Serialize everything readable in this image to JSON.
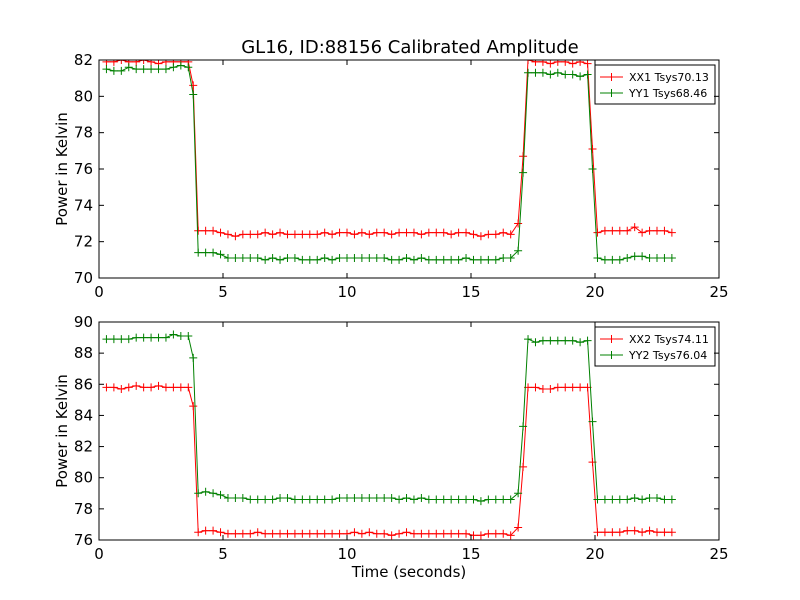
{
  "title": "GL16, ID:88156 Calibrated Amplitude",
  "colors": {
    "red": "#ff0000",
    "green": "#008000"
  },
  "chart_data": [
    {
      "type": "line",
      "xlabel": "",
      "ylabel": "Power in Kelvin",
      "xlim": [
        0,
        25
      ],
      "ylim": [
        70,
        82
      ],
      "xticks": [
        0,
        5,
        10,
        15,
        20,
        25
      ],
      "yticks": [
        70,
        72,
        74,
        76,
        78,
        80,
        82
      ],
      "grid": false,
      "legend": "top-right",
      "x": [
        0.3,
        0.6,
        0.9,
        1.2,
        1.5,
        1.8,
        2.1,
        2.4,
        2.7,
        3.0,
        3.3,
        3.6,
        3.8,
        4.0,
        4.3,
        4.6,
        4.9,
        5.2,
        5.5,
        5.8,
        6.1,
        6.4,
        6.7,
        7.0,
        7.3,
        7.6,
        7.9,
        8.2,
        8.5,
        8.8,
        9.1,
        9.4,
        9.7,
        10.0,
        10.3,
        10.6,
        10.9,
        11.2,
        11.5,
        11.8,
        12.1,
        12.4,
        12.7,
        13.0,
        13.3,
        13.6,
        13.9,
        14.2,
        14.5,
        14.8,
        15.1,
        15.4,
        15.7,
        16.0,
        16.3,
        16.6,
        16.9,
        17.1,
        17.3,
        17.6,
        17.9,
        18.2,
        18.5,
        18.8,
        19.1,
        19.4,
        19.7,
        19.9,
        20.1,
        20.4,
        20.7,
        21.0,
        21.3,
        21.6,
        21.9,
        22.2,
        22.5,
        22.8,
        23.1
      ],
      "series": [
        {
          "name": "XX1 Tsys70.13",
          "color": "#ff0000",
          "values": [
            81.9,
            81.9,
            82.0,
            81.9,
            81.9,
            82.0,
            81.9,
            81.8,
            81.9,
            81.9,
            81.9,
            81.9,
            80.6,
            72.6,
            72.6,
            72.6,
            72.5,
            72.4,
            72.3,
            72.4,
            72.4,
            72.4,
            72.5,
            72.4,
            72.5,
            72.4,
            72.4,
            72.4,
            72.4,
            72.4,
            72.5,
            72.4,
            72.5,
            72.5,
            72.4,
            72.5,
            72.4,
            72.5,
            72.5,
            72.4,
            72.5,
            72.5,
            72.5,
            72.4,
            72.5,
            72.5,
            72.5,
            72.4,
            72.5,
            72.5,
            72.4,
            72.3,
            72.4,
            72.4,
            72.5,
            72.4,
            73.0,
            76.7,
            82.0,
            81.9,
            81.9,
            81.8,
            81.9,
            81.9,
            81.8,
            81.9,
            81.8,
            77.1,
            72.5,
            72.6,
            72.6,
            72.6,
            72.6,
            72.8,
            72.5,
            72.6,
            72.6,
            72.6,
            72.5
          ]
        },
        {
          "name": "YY1 Tsys68.46",
          "color": "#008000",
          "values": [
            81.5,
            81.4,
            81.4,
            81.6,
            81.5,
            81.5,
            81.5,
            81.5,
            81.5,
            81.6,
            81.7,
            81.6,
            80.1,
            71.4,
            71.4,
            71.4,
            71.3,
            71.1,
            71.1,
            71.1,
            71.1,
            71.1,
            71.0,
            71.1,
            71.0,
            71.1,
            71.1,
            71.0,
            71.0,
            71.0,
            71.1,
            71.0,
            71.1,
            71.1,
            71.1,
            71.1,
            71.1,
            71.1,
            71.1,
            71.0,
            71.0,
            71.1,
            71.0,
            71.1,
            71.0,
            71.0,
            71.0,
            71.0,
            71.0,
            71.1,
            71.0,
            71.0,
            71.0,
            71.0,
            71.1,
            71.1,
            71.5,
            75.8,
            81.3,
            81.3,
            81.3,
            81.2,
            81.3,
            81.2,
            81.2,
            81.1,
            81.2,
            76.0,
            71.1,
            71.0,
            71.0,
            71.0,
            71.1,
            71.2,
            71.2,
            71.1,
            71.1,
            71.1,
            71.1
          ]
        }
      ]
    },
    {
      "type": "line",
      "xlabel": "Time (seconds)",
      "ylabel": "Power in Kelvin",
      "xlim": [
        0,
        25
      ],
      "ylim": [
        76,
        90
      ],
      "xticks": [
        0,
        5,
        10,
        15,
        20,
        25
      ],
      "yticks": [
        76,
        78,
        80,
        82,
        84,
        86,
        88,
        90
      ],
      "grid": false,
      "legend": "top-right",
      "x": [
        0.3,
        0.6,
        0.9,
        1.2,
        1.5,
        1.8,
        2.1,
        2.4,
        2.7,
        3.0,
        3.3,
        3.6,
        3.8,
        4.0,
        4.3,
        4.6,
        4.9,
        5.2,
        5.5,
        5.8,
        6.1,
        6.4,
        6.7,
        7.0,
        7.3,
        7.6,
        7.9,
        8.2,
        8.5,
        8.8,
        9.1,
        9.4,
        9.7,
        10.0,
        10.3,
        10.6,
        10.9,
        11.2,
        11.5,
        11.8,
        12.1,
        12.4,
        12.7,
        13.0,
        13.3,
        13.6,
        13.9,
        14.2,
        14.5,
        14.8,
        15.1,
        15.4,
        15.7,
        16.0,
        16.3,
        16.6,
        16.9,
        17.1,
        17.3,
        17.6,
        17.9,
        18.2,
        18.5,
        18.8,
        19.1,
        19.4,
        19.7,
        19.9,
        20.1,
        20.4,
        20.7,
        21.0,
        21.3,
        21.6,
        21.9,
        22.2,
        22.5,
        22.8,
        23.1
      ],
      "series": [
        {
          "name": "XX2 Tsys74.11",
          "color": "#ff0000",
          "values": [
            85.8,
            85.8,
            85.7,
            85.8,
            85.9,
            85.8,
            85.8,
            85.9,
            85.8,
            85.8,
            85.8,
            85.8,
            84.6,
            76.5,
            76.6,
            76.6,
            76.5,
            76.4,
            76.4,
            76.4,
            76.4,
            76.5,
            76.4,
            76.4,
            76.4,
            76.4,
            76.4,
            76.4,
            76.4,
            76.4,
            76.4,
            76.4,
            76.4,
            76.4,
            76.5,
            76.4,
            76.5,
            76.4,
            76.4,
            76.3,
            76.4,
            76.5,
            76.4,
            76.4,
            76.4,
            76.4,
            76.4,
            76.4,
            76.4,
            76.4,
            76.3,
            76.3,
            76.4,
            76.4,
            76.4,
            76.3,
            76.8,
            80.7,
            85.8,
            85.8,
            85.7,
            85.7,
            85.8,
            85.8,
            85.8,
            85.8,
            85.8,
            81.0,
            76.5,
            76.5,
            76.5,
            76.5,
            76.6,
            76.6,
            76.5,
            76.6,
            76.5,
            76.5,
            76.5
          ]
        },
        {
          "name": "YY2 Tsys76.04",
          "color": "#008000",
          "values": [
            88.9,
            88.9,
            88.9,
            88.9,
            89.0,
            89.0,
            89.0,
            89.0,
            89.0,
            89.2,
            89.1,
            89.1,
            87.7,
            79.0,
            79.1,
            79.0,
            78.9,
            78.7,
            78.7,
            78.7,
            78.6,
            78.6,
            78.6,
            78.6,
            78.7,
            78.7,
            78.6,
            78.6,
            78.6,
            78.6,
            78.6,
            78.6,
            78.7,
            78.7,
            78.7,
            78.7,
            78.7,
            78.7,
            78.7,
            78.7,
            78.6,
            78.7,
            78.6,
            78.7,
            78.6,
            78.6,
            78.6,
            78.6,
            78.6,
            78.6,
            78.6,
            78.5,
            78.6,
            78.6,
            78.6,
            78.6,
            79.0,
            83.3,
            88.9,
            88.7,
            88.8,
            88.8,
            88.8,
            88.8,
            88.8,
            88.7,
            88.8,
            83.6,
            78.6,
            78.6,
            78.6,
            78.6,
            78.6,
            78.7,
            78.6,
            78.7,
            78.7,
            78.6,
            78.6
          ]
        }
      ]
    }
  ]
}
